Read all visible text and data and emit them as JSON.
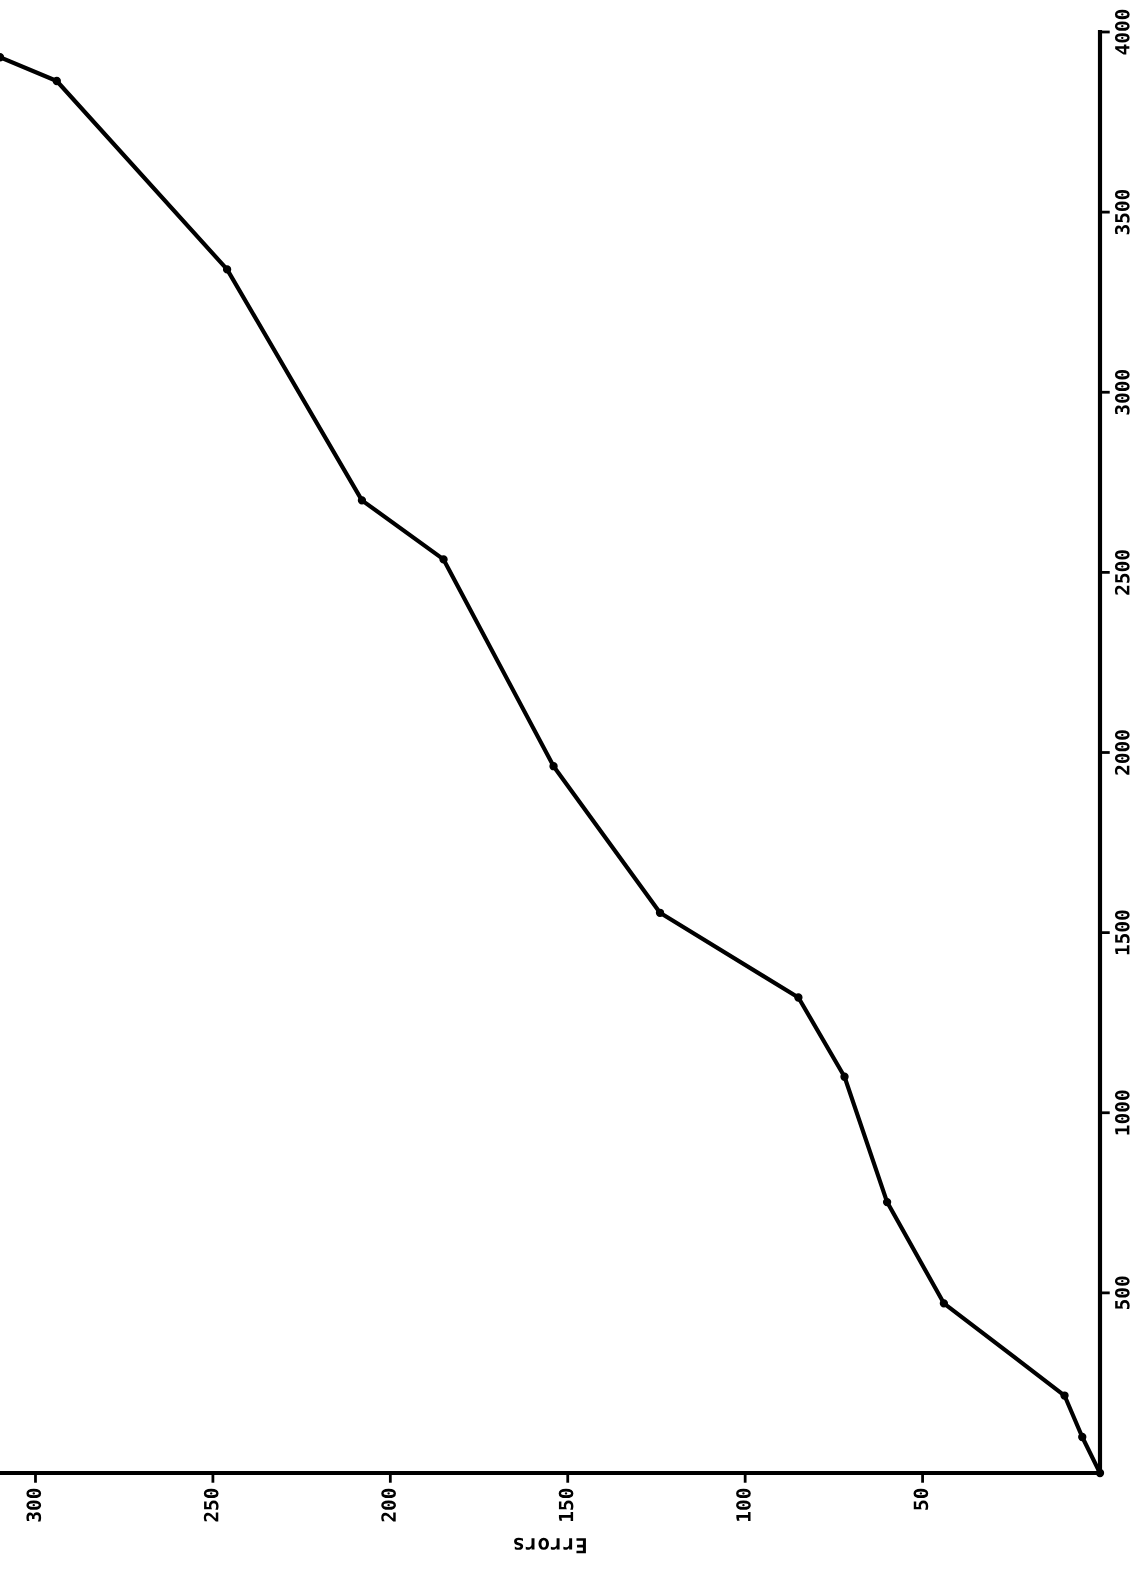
{
  "chart_data": {
    "type": "line",
    "xlabel": "Errors",
    "x": [
      0,
      5,
      10,
      44,
      60,
      72,
      85,
      124,
      154,
      185,
      208,
      246,
      294,
      310
    ],
    "series": [
      {
        "color": "#000000",
        "values": [
          0,
          100,
          215,
          471,
          752,
          1100,
          1320,
          1555,
          1962,
          2536,
          2700,
          3341,
          3864,
          3930
        ]
      }
    ],
    "xlim": [
      310,
      0
    ],
    "xticks": [
      300,
      250,
      200,
      150,
      100,
      50
    ],
    "ylim": [
      0,
      4000
    ],
    "yticks": [
      500,
      1000,
      1500,
      2000,
      2500,
      3000,
      3500,
      4000
    ],
    "grid": false,
    "legend": false,
    "marker": "circle",
    "line_style": "solid"
  }
}
